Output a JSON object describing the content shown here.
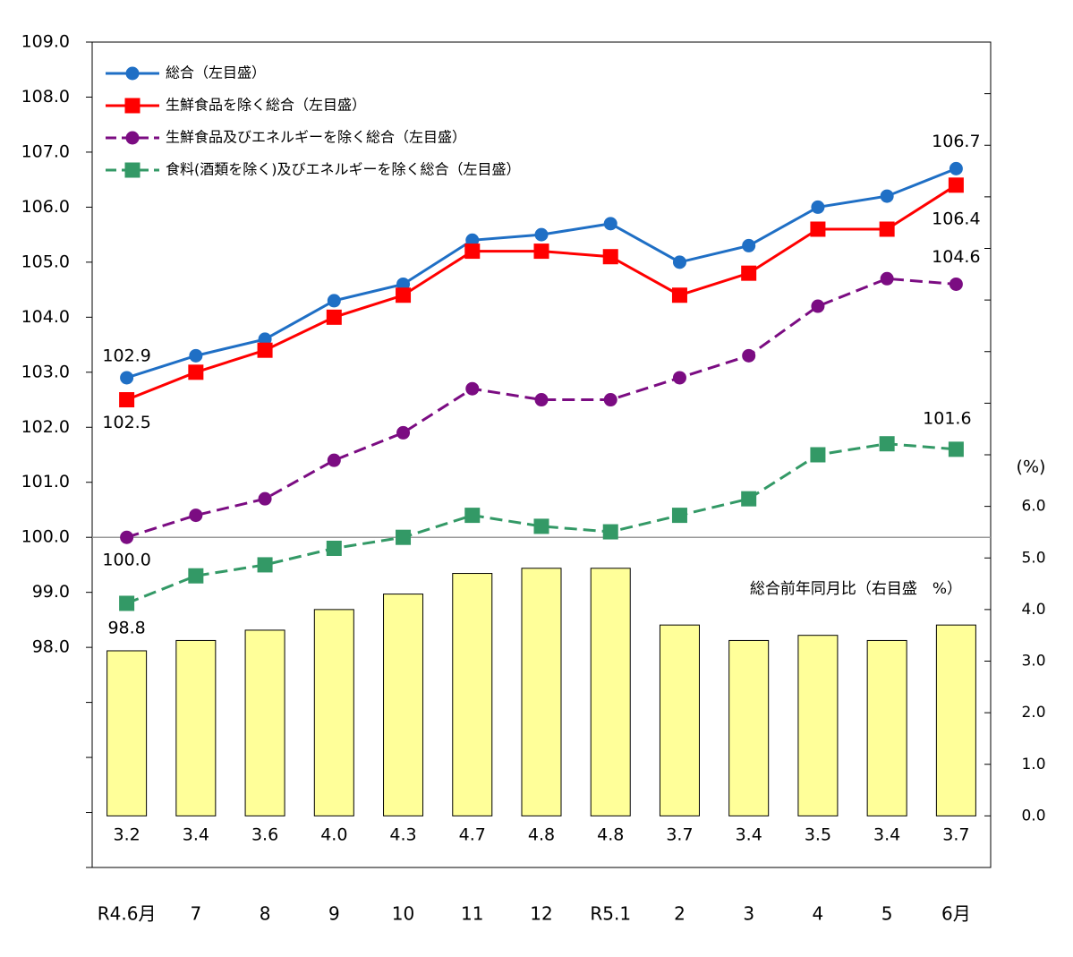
{
  "chart_data": {
    "type": "line",
    "categories": [
      "R4.6月",
      "7",
      "8",
      "9",
      "10",
      "11",
      "12",
      "R5.1",
      "2",
      "3",
      "4",
      "5",
      "6月"
    ],
    "series": [
      {
        "name": "総合（左目盛）",
        "color": "#1f6fc5",
        "marker": "circle",
        "dash": false,
        "values": [
          102.9,
          103.3,
          103.6,
          104.3,
          104.6,
          105.4,
          105.5,
          105.7,
          105.0,
          105.3,
          106.0,
          106.2,
          106.7
        ],
        "value_labels": [
          "102.9",
          null,
          null,
          null,
          null,
          null,
          null,
          null,
          null,
          null,
          null,
          null,
          "106.7"
        ]
      },
      {
        "name": "生鮮食品を除く総合（左目盛）",
        "color": "#ff0000",
        "marker": "square",
        "dash": false,
        "values": [
          102.5,
          103.0,
          103.4,
          104.0,
          104.4,
          105.2,
          105.2,
          105.1,
          104.4,
          104.8,
          105.6,
          105.6,
          106.4
        ],
        "value_labels": [
          "102.5",
          null,
          null,
          null,
          null,
          null,
          null,
          null,
          null,
          null,
          null,
          null,
          "106.4"
        ]
      },
      {
        "name": "生鮮食品及びエネルギーを除く総合（左目盛）",
        "color": "#7b0c82",
        "marker": "circle",
        "dash": true,
        "values": [
          100.0,
          100.4,
          100.7,
          101.4,
          101.9,
          102.7,
          102.5,
          102.5,
          102.9,
          103.3,
          104.2,
          104.7,
          104.6
        ],
        "value_labels": [
          "100.0",
          null,
          null,
          null,
          null,
          null,
          null,
          null,
          null,
          null,
          null,
          null,
          "104.6"
        ]
      },
      {
        "name": "食料(酒類を除く)及びエネルギーを除く総合（左目盛）",
        "color": "#339966",
        "marker": "square",
        "dash": true,
        "values": [
          98.8,
          99.3,
          99.5,
          99.8,
          100.0,
          100.4,
          100.2,
          100.1,
          100.4,
          100.7,
          101.5,
          101.7,
          101.6
        ],
        "value_labels": [
          "98.8",
          null,
          null,
          null,
          null,
          null,
          null,
          null,
          null,
          null,
          null,
          null,
          "101.6"
        ]
      },
      {
        "name": "総合前年同月比（右目盛　%）",
        "type": "bar",
        "axis": "y2",
        "color": "#ffff99",
        "values": [
          3.2,
          3.4,
          3.6,
          4.0,
          4.3,
          4.7,
          4.8,
          4.8,
          3.7,
          3.4,
          3.5,
          3.4,
          3.7
        ],
        "value_labels": [
          "3.2",
          "3.4",
          "3.6",
          "4.0",
          "4.3",
          "4.7",
          "4.8",
          "4.8",
          "3.7",
          "3.4",
          "3.5",
          "3.4",
          "3.7"
        ]
      }
    ],
    "ylim": [
      94,
      109
    ],
    "yticks": [
      {
        "value": 98,
        "label": "98.0"
      },
      {
        "value": 99,
        "label": "99.0"
      },
      {
        "value": 100,
        "label": "100.0"
      },
      {
        "value": 101,
        "label": "101.0"
      },
      {
        "value": 102,
        "label": "102.0"
      },
      {
        "value": 103,
        "label": "103.0"
      },
      {
        "value": 104,
        "label": "104.0"
      },
      {
        "value": 105,
        "label": "105.0"
      },
      {
        "value": 106,
        "label": "106.0"
      },
      {
        "value": 107,
        "label": "107.0"
      },
      {
        "value": 108,
        "label": "108.0"
      },
      {
        "value": 109,
        "label": "109.0"
      }
    ],
    "yminor_ticks": [
      94,
      95,
      96,
      97
    ],
    "y2lim": [
      -1,
      15
    ],
    "y2ticks": [
      {
        "value": 0,
        "label": "0.0"
      },
      {
        "value": 1,
        "label": "1.0"
      },
      {
        "value": 2,
        "label": "2.0"
      },
      {
        "value": 3,
        "label": "3.0"
      },
      {
        "value": 4,
        "label": "4.0"
      },
      {
        "value": 5,
        "label": "5.0"
      },
      {
        "value": 6,
        "label": "6.0"
      }
    ],
    "y2minor_ticks": [
      7,
      8,
      9,
      10,
      11,
      12,
      13,
      14,
      15
    ],
    "y2label": "(%)",
    "reference_line": 100,
    "legend": "upper left"
  }
}
